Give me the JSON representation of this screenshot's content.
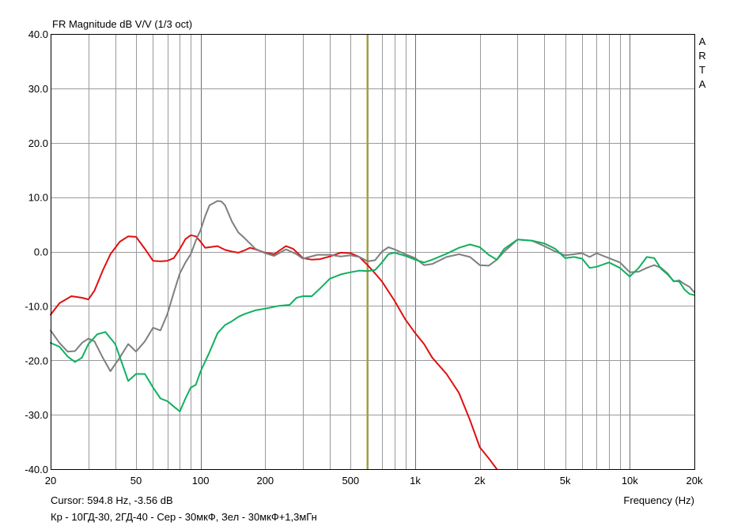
{
  "title": "FR Magnitude dB V/V (1/3 oct)",
  "watermark": "ARTA",
  "cursor_text": "Cursor: 594.8 Hz, -3.56 dB",
  "xlabel": "Frequency (Hz)",
  "caption": "Кр - 10ГД-30, 2ГД-40 - Сер - 30мкФ, Зел - 30мкФ+1,3мГн",
  "colors": {
    "background": "#ffffff",
    "grid": "#9a9a9a",
    "grid_major": "#6e6e6e",
    "cursor": "#a8a02a",
    "red": "#e01010",
    "gray": "#7f7f7f",
    "green": "#10b060"
  },
  "chart_data": {
    "type": "line",
    "xscale": "log",
    "xlim": [
      20,
      20000
    ],
    "ylim": [
      -40,
      40
    ],
    "yticks": [
      "40.0",
      "30.0",
      "20.0",
      "10.0",
      "0.0",
      "-10.0",
      "-20.0",
      "-30.0",
      "-40.0"
    ],
    "xticks": [
      {
        "v": 20,
        "label": "20"
      },
      {
        "v": 50,
        "label": "50"
      },
      {
        "v": 100,
        "label": "100"
      },
      {
        "v": 200,
        "label": "200"
      },
      {
        "v": 500,
        "label": "500"
      },
      {
        "v": 1000,
        "label": "1k"
      },
      {
        "v": 2000,
        "label": "2k"
      },
      {
        "v": 5000,
        "label": "5k"
      },
      {
        "v": 10000,
        "label": "10k"
      },
      {
        "v": 20000,
        "label": "20k"
      }
    ],
    "grid": true,
    "cursor_x": 594.8,
    "series": [
      {
        "color": "red",
        "x": [
          20,
          22,
          25,
          28,
          30,
          32,
          35,
          38,
          42,
          46,
          50,
          55,
          60,
          65,
          70,
          75,
          80,
          85,
          90,
          95,
          100,
          105,
          110,
          120,
          130,
          140,
          150,
          160,
          170,
          180,
          200,
          220,
          250,
          270,
          300,
          330,
          360,
          400,
          450,
          500,
          550,
          600,
          650,
          700,
          800,
          900,
          1000,
          1100,
          1200,
          1400,
          1600,
          1800,
          2000,
          2200,
          2400
        ],
        "y": [
          -11.6,
          -9.5,
          -8.2,
          -8.5,
          -8.8,
          -7.2,
          -3.5,
          -0.5,
          1.8,
          2.8,
          2.7,
          0.5,
          -1.7,
          -1.8,
          -1.7,
          -1.2,
          0.5,
          2.3,
          3.0,
          2.8,
          1.8,
          0.7,
          0.8,
          1.0,
          0.3,
          0.0,
          -0.2,
          0.2,
          0.7,
          0.4,
          -0.2,
          -0.5,
          1.0,
          0.5,
          -1.2,
          -1.5,
          -1.4,
          -0.9,
          -0.2,
          -0.3,
          -1.0,
          -2.5,
          -4.0,
          -5.5,
          -9.0,
          -12.5,
          -15.0,
          -17.0,
          -19.5,
          -22.5,
          -26.0,
          -31.0,
          -36.0,
          -38.0,
          -40.0
        ]
      },
      {
        "color": "gray",
        "x": [
          20,
          22,
          24,
          26,
          28,
          30,
          32,
          35,
          38,
          42,
          46,
          50,
          55,
          60,
          65,
          70,
          75,
          80,
          85,
          90,
          95,
          100,
          105,
          110,
          120,
          125,
          130,
          140,
          150,
          160,
          180,
          200,
          220,
          250,
          280,
          300,
          350,
          400,
          450,
          500,
          550,
          600,
          650,
          700,
          750,
          800,
          900,
          1000,
          1100,
          1200,
          1400,
          1600,
          1800,
          2000,
          2200,
          2400,
          2600,
          3000,
          3500,
          4000,
          4500,
          5000,
          5500,
          6000,
          6500,
          7000,
          8000,
          9000,
          10000,
          11000,
          12000,
          13000,
          14000,
          15000,
          16000,
          17000,
          18000,
          19000,
          20000
        ],
        "y": [
          -14.5,
          -16.8,
          -18.4,
          -18.3,
          -16.8,
          -16.0,
          -16.5,
          -19.5,
          -22.0,
          -19.5,
          -17.0,
          -18.4,
          -16.5,
          -14.0,
          -14.5,
          -11.5,
          -7.5,
          -4.0,
          -2.0,
          -0.5,
          2.0,
          4.0,
          6.5,
          8.5,
          9.3,
          9.2,
          8.5,
          5.5,
          3.5,
          2.5,
          0.5,
          -0.3,
          -0.8,
          0.4,
          -0.5,
          -1.3,
          -0.6,
          -0.6,
          -0.9,
          -0.7,
          -1.0,
          -1.8,
          -1.6,
          0.0,
          0.8,
          0.4,
          -0.5,
          -1.2,
          -2.5,
          -2.3,
          -1.0,
          -0.5,
          -1.0,
          -2.5,
          -2.6,
          -1.5,
          0.0,
          2.2,
          2.0,
          1.0,
          0.0,
          -0.7,
          -0.5,
          -0.3,
          -1.0,
          -0.3,
          -1.2,
          -2.0,
          -3.8,
          -3.7,
          -3.0,
          -2.5,
          -3.0,
          -4.0,
          -5.5,
          -5.3,
          -6.0,
          -6.5,
          -7.5
        ]
      },
      {
        "color": "green",
        "x": [
          20,
          22,
          24,
          26,
          28,
          30,
          33,
          36,
          40,
          43,
          46,
          50,
          55,
          60,
          65,
          70,
          75,
          80,
          85,
          90,
          95,
          100,
          110,
          120,
          130,
          140,
          150,
          160,
          180,
          200,
          230,
          260,
          280,
          300,
          330,
          360,
          400,
          450,
          500,
          550,
          600,
          650,
          700,
          750,
          800,
          900,
          1000,
          1100,
          1200,
          1400,
          1600,
          1800,
          2000,
          2200,
          2400,
          2600,
          3000,
          3500,
          4000,
          4500,
          5000,
          5500,
          6000,
          6500,
          7000,
          8000,
          9000,
          10000,
          11000,
          12000,
          13000,
          14000,
          15000,
          16000,
          17000,
          18000,
          19000,
          20000
        ],
        "y": [
          -16.8,
          -17.5,
          -19.3,
          -20.3,
          -19.5,
          -17.0,
          -15.2,
          -14.8,
          -17.0,
          -20.5,
          -23.8,
          -22.5,
          -22.5,
          -25.0,
          -27.0,
          -27.5,
          -28.5,
          -29.4,
          -27.0,
          -25.0,
          -24.5,
          -22.0,
          -18.5,
          -15.0,
          -13.5,
          -12.8,
          -12.0,
          -11.5,
          -10.8,
          -10.5,
          -10.0,
          -9.8,
          -8.5,
          -8.2,
          -8.2,
          -6.8,
          -5.0,
          -4.2,
          -3.8,
          -3.5,
          -3.6,
          -3.4,
          -2.0,
          -0.5,
          -0.2,
          -0.8,
          -1.5,
          -2.0,
          -1.5,
          -0.4,
          0.7,
          1.3,
          0.8,
          -0.6,
          -1.5,
          0.5,
          2.2,
          2.0,
          1.5,
          0.5,
          -1.2,
          -1.0,
          -1.3,
          -3.0,
          -2.8,
          -2.0,
          -3.0,
          -4.6,
          -3.0,
          -1.0,
          -1.2,
          -3.2,
          -4.2,
          -5.4,
          -5.5,
          -7.0,
          -7.8,
          -8.0
        ]
      }
    ]
  }
}
